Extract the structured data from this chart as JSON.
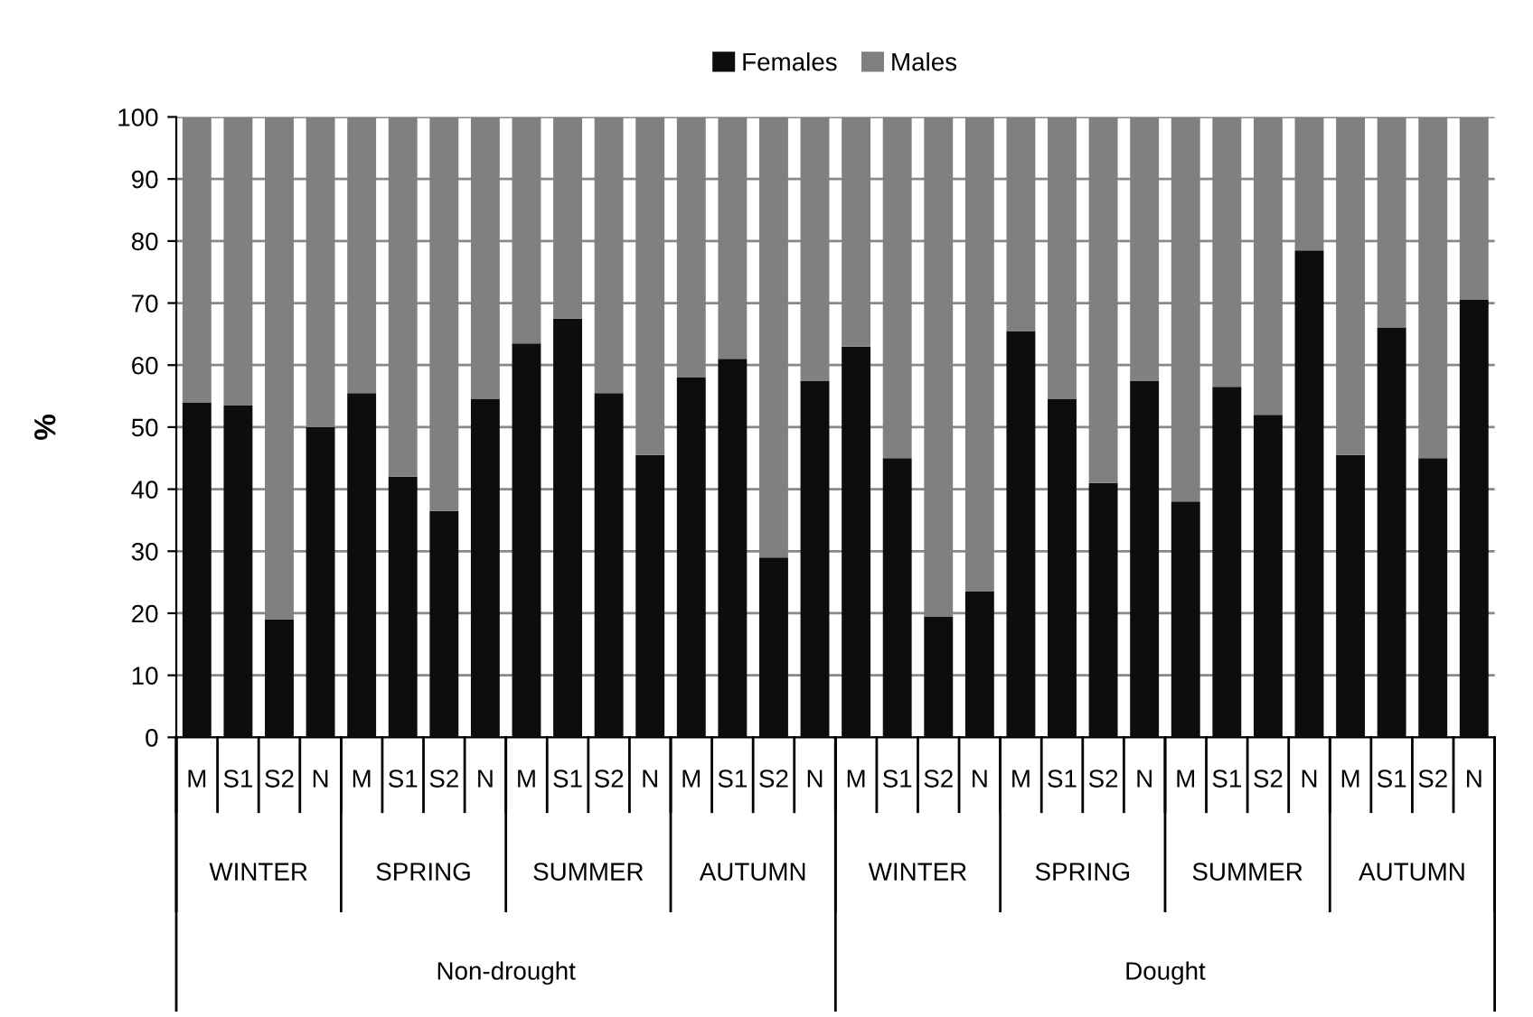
{
  "chart_data": {
    "type": "bar",
    "stacked": true,
    "ylabel": "%",
    "categories": [
      "M",
      "S1",
      "S2",
      "N",
      "M",
      "S1",
      "S2",
      "N",
      "M",
      "S1",
      "S2",
      "N",
      "M",
      "S1",
      "S2",
      "N",
      "M",
      "S1",
      "S2",
      "N",
      "M",
      "S1",
      "S2",
      "N",
      "M",
      "S1",
      "S2",
      "N",
      "M",
      "S1",
      "S2",
      "N"
    ],
    "series": [
      {
        "name": "Females",
        "color": "#0d0d0d",
        "values": [
          54,
          53.5,
          19,
          50,
          55.5,
          42,
          36.5,
          54.5,
          63.5,
          67.5,
          55.5,
          45.5,
          58,
          61,
          29,
          57.5,
          63,
          45,
          19.5,
          23.5,
          65.5,
          54.5,
          41,
          57.5,
          38,
          56.5,
          52,
          78.5,
          45.5,
          66,
          45,
          70.5
        ]
      },
      {
        "name": "Males",
        "color": "#808080",
        "values": [
          46,
          46.5,
          81,
          50,
          44.5,
          58,
          63.5,
          45.5,
          36.5,
          32.5,
          44.5,
          54.5,
          42,
          39,
          71,
          42.5,
          37,
          55,
          80.5,
          76.5,
          34.5,
          45.5,
          59,
          42.5,
          62,
          43.5,
          48,
          21.5,
          54.5,
          34,
          55,
          29.5
        ]
      }
    ],
    "annotations": [
      "WINTER",
      "SPRING",
      "SUMMER",
      "AUTUMN",
      "WINTER",
      "SPRING",
      "SUMMER",
      "AUTUMN",
      "Non-drought",
      "Dought"
    ],
    "ylim": [
      0,
      100
    ],
    "yticks": [
      0,
      10,
      20,
      30,
      40,
      50,
      60,
      70,
      80,
      90,
      100
    ],
    "grid": "y",
    "legend": "top"
  }
}
